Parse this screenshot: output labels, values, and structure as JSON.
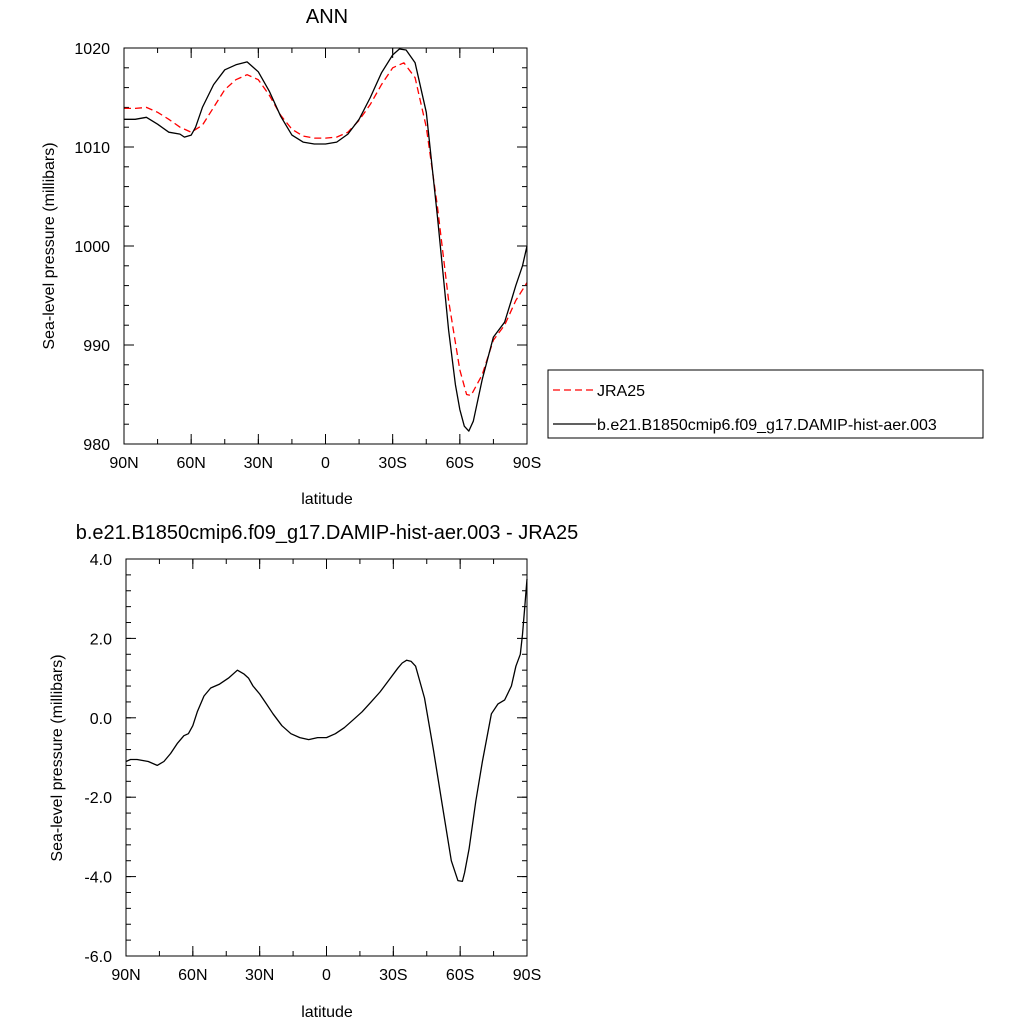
{
  "chart_data": [
    {
      "type": "line",
      "title": "ANN",
      "xlabel": "latitude",
      "ylabel": "Sea-level pressure (millibars)",
      "xlim": [
        90,
        -90
      ],
      "ylim": [
        980,
        1020
      ],
      "xticks": [
        90,
        60,
        30,
        0,
        -30,
        -60,
        -90
      ],
      "xtick_labels": [
        "90N",
        "60N",
        "30N",
        "0",
        "30S",
        "60S",
        "90S"
      ],
      "yticks": [
        980,
        990,
        1000,
        1010,
        1020
      ],
      "ytick_labels": [
        "980",
        "990",
        "1000",
        "1010",
        "1020"
      ],
      "grid": false,
      "legend": "right",
      "series": [
        {
          "name": "JRA25",
          "color": "#ff0000",
          "dash": "dashed",
          "x": [
            90,
            85,
            80,
            75,
            70,
            65,
            60,
            55,
            50,
            45,
            40,
            35,
            30,
            25,
            20,
            15,
            10,
            5,
            0,
            -5,
            -10,
            -15,
            -20,
            -25,
            -30,
            -35,
            -40,
            -45,
            -50,
            -55,
            -60,
            -63,
            -65,
            -70,
            -75,
            -80,
            -85,
            -90
          ],
          "y": [
            1013.9,
            1013.9,
            1014.0,
            1013.5,
            1012.8,
            1012.0,
            1011.5,
            1012.2,
            1014.0,
            1015.8,
            1016.8,
            1017.3,
            1016.8,
            1015.2,
            1013.2,
            1011.8,
            1011.1,
            1010.9,
            1010.9,
            1011.0,
            1011.5,
            1012.7,
            1014.3,
            1016.3,
            1018.0,
            1018.5,
            1017.0,
            1012.0,
            1004.0,
            994.5,
            987.5,
            985.0,
            984.9,
            987.0,
            990.5,
            992.0,
            994.5,
            996.3
          ]
        },
        {
          "name": "b.e21.B1850cmip6.f09_g17.DAMIP-hist-aer.003",
          "color": "#000000",
          "dash": "solid",
          "x": [
            90,
            85,
            80,
            75,
            70,
            65,
            63,
            60,
            58,
            55,
            50,
            45,
            40,
            35,
            30,
            25,
            20,
            15,
            10,
            5,
            0,
            -5,
            -10,
            -15,
            -20,
            -25,
            -30,
            -33,
            -36,
            -40,
            -45,
            -50,
            -55,
            -58,
            -60,
            -62,
            -64,
            -66,
            -70,
            -75,
            -80,
            -83,
            -85,
            -88,
            -90
          ],
          "y": [
            1012.8,
            1012.8,
            1013.0,
            1012.3,
            1011.5,
            1011.3,
            1011.0,
            1011.2,
            1012.0,
            1014.0,
            1016.3,
            1017.8,
            1018.3,
            1018.6,
            1017.6,
            1015.6,
            1013.1,
            1011.2,
            1010.5,
            1010.3,
            1010.3,
            1010.5,
            1011.3,
            1012.8,
            1015.0,
            1017.5,
            1019.3,
            1019.9,
            1019.8,
            1018.5,
            1013.5,
            1003.0,
            991.5,
            986.0,
            983.5,
            981.8,
            981.3,
            982.3,
            986.5,
            990.8,
            992.3,
            994.5,
            996.0,
            998.0,
            1000.0
          ]
        }
      ]
    },
    {
      "type": "line",
      "title": "b.e21.B1850cmip6.f09_g17.DAMIP-hist-aer.003 - JRA25",
      "xlabel": "latitude",
      "ylabel": "Sea-level pressure (millibars)",
      "xlim": [
        90,
        -90
      ],
      "ylim": [
        -6.0,
        4.0
      ],
      "xticks": [
        90,
        60,
        30,
        0,
        -30,
        -60,
        -90
      ],
      "xtick_labels": [
        "90N",
        "60N",
        "30N",
        "0",
        "30S",
        "60S",
        "90S"
      ],
      "yticks": [
        -6.0,
        -4.0,
        -2.0,
        0.0,
        2.0,
        4.0
      ],
      "ytick_labels": [
        "-6.0",
        "-4.0",
        "-2.0",
        "0.0",
        "2.0",
        "4.0"
      ],
      "grid": false,
      "series": [
        {
          "color": "#000000",
          "dash": "solid",
          "x": [
            90,
            88,
            85,
            80,
            76,
            73,
            70,
            67,
            64,
            62,
            60,
            58,
            55,
            52,
            48,
            44,
            40,
            37,
            35,
            33,
            30,
            27,
            24,
            20,
            16,
            12,
            8,
            4,
            0,
            -4,
            -8,
            -12,
            -16,
            -20,
            -24,
            -28,
            -32,
            -34,
            -36,
            -38,
            -40,
            -44,
            -48,
            -52,
            -56,
            -59,
            -61,
            -62,
            -64,
            -67,
            -70,
            -74,
            -77,
            -80,
            -83,
            -85,
            -87,
            -88,
            -89,
            -90
          ],
          "y": [
            -1.1,
            -1.05,
            -1.05,
            -1.1,
            -1.2,
            -1.1,
            -0.9,
            -0.65,
            -0.45,
            -0.4,
            -0.2,
            0.15,
            0.55,
            0.75,
            0.85,
            1.0,
            1.2,
            1.1,
            1.0,
            0.8,
            0.6,
            0.35,
            0.1,
            -0.2,
            -0.4,
            -0.5,
            -0.55,
            -0.5,
            -0.5,
            -0.4,
            -0.25,
            -0.05,
            0.15,
            0.4,
            0.65,
            0.95,
            1.25,
            1.38,
            1.45,
            1.42,
            1.3,
            0.5,
            -0.8,
            -2.2,
            -3.6,
            -4.1,
            -4.12,
            -3.9,
            -3.3,
            -2.1,
            -1.1,
            0.1,
            0.35,
            0.45,
            0.8,
            1.3,
            1.6,
            2.1,
            2.8,
            3.5
          ]
        }
      ]
    }
  ]
}
